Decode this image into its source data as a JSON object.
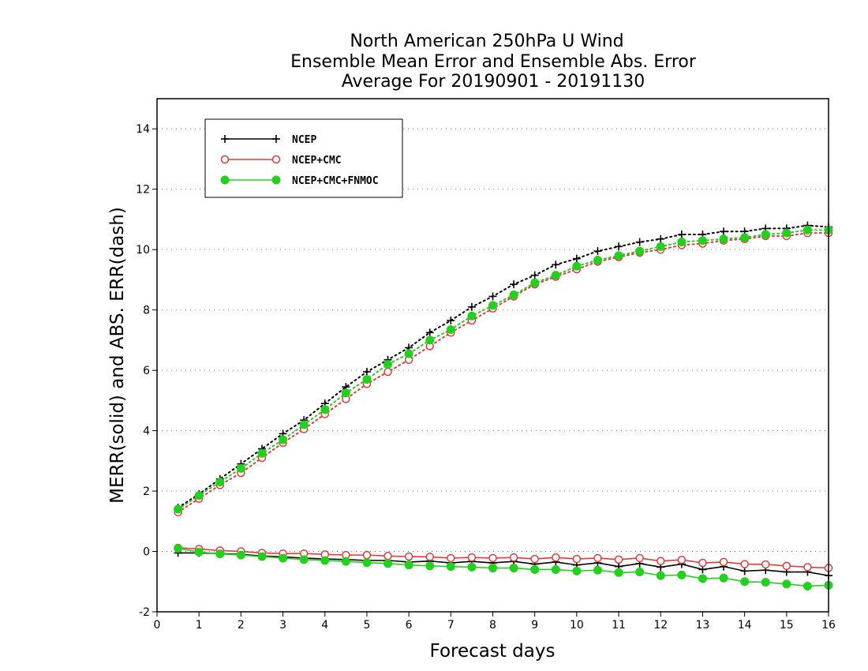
{
  "chart_data": {
    "type": "line",
    "title": [
      "North American 250hPa U Wind",
      "Ensemble Mean Error and Ensemble Abs. Error",
      "Average For 20190901 - 20191130"
    ],
    "xlabel": "Forecast days",
    "ylabel": "MERR(solid) and ABS. ERR(dash)",
    "xlim": [
      0,
      16
    ],
    "ylim": [
      -2,
      15
    ],
    "xticks": [
      "0",
      "1",
      "2",
      "3",
      "4",
      "5",
      "6",
      "7",
      "8",
      "9",
      "10",
      "11",
      "12",
      "13",
      "14",
      "15",
      "16"
    ],
    "yticks": [
      "-2",
      "0",
      "2",
      "4",
      "6",
      "8",
      "10",
      "12",
      "14"
    ],
    "grid": "horizontal dotted",
    "legend_position": "top-left",
    "x": [
      0.5,
      1,
      1.5,
      2,
      2.5,
      3,
      3.5,
      4,
      4.5,
      5,
      5.5,
      6,
      6.5,
      7,
      7.5,
      8,
      8.5,
      9,
      9.5,
      10,
      10.5,
      11,
      11.5,
      12,
      12.5,
      13,
      13.5,
      14,
      14.5,
      15,
      15.5,
      16
    ],
    "series": [
      {
        "name": "NCEP",
        "color": "#000000",
        "marker": "plus",
        "mean_error": [
          -0.05,
          -0.05,
          -0.07,
          -0.1,
          -0.15,
          -0.18,
          -0.22,
          -0.25,
          -0.27,
          -0.3,
          -0.3,
          -0.35,
          -0.32,
          -0.38,
          -0.33,
          -0.38,
          -0.33,
          -0.42,
          -0.35,
          -0.45,
          -0.38,
          -0.5,
          -0.4,
          -0.52,
          -0.42,
          -0.6,
          -0.5,
          -0.65,
          -0.62,
          -0.68,
          -0.68,
          -0.8
        ],
        "abs_error": [
          1.45,
          1.9,
          2.4,
          2.9,
          3.4,
          3.9,
          4.35,
          4.9,
          5.45,
          5.95,
          6.35,
          6.75,
          7.25,
          7.65,
          8.1,
          8.45,
          8.85,
          9.15,
          9.5,
          9.7,
          9.95,
          10.1,
          10.25,
          10.35,
          10.5,
          10.5,
          10.6,
          10.6,
          10.7,
          10.7,
          10.8,
          10.75
        ]
      },
      {
        "name": "NCEP+CMC",
        "color": "#e8393a",
        "marker": "open-circle",
        "mean_error": [
          0.12,
          0.08,
          0.03,
          0.0,
          -0.05,
          -0.07,
          -0.07,
          -0.1,
          -0.12,
          -0.12,
          -0.15,
          -0.17,
          -0.18,
          -0.22,
          -0.2,
          -0.22,
          -0.2,
          -0.25,
          -0.2,
          -0.25,
          -0.22,
          -0.27,
          -0.22,
          -0.32,
          -0.28,
          -0.38,
          -0.35,
          -0.42,
          -0.43,
          -0.48,
          -0.52,
          -0.55
        ],
        "abs_error": [
          1.3,
          1.75,
          2.2,
          2.6,
          3.1,
          3.6,
          4.05,
          4.55,
          5.05,
          5.55,
          5.95,
          6.35,
          6.8,
          7.25,
          7.65,
          8.05,
          8.45,
          8.85,
          9.1,
          9.35,
          9.6,
          9.75,
          9.9,
          10.0,
          10.15,
          10.2,
          10.3,
          10.35,
          10.45,
          10.45,
          10.55,
          10.55
        ]
      },
      {
        "name": "NCEP+CMC+FNMOC",
        "color": "#22d11e",
        "marker": "filled-circle",
        "mean_error": [
          0.1,
          -0.02,
          -0.08,
          -0.12,
          -0.17,
          -0.22,
          -0.27,
          -0.3,
          -0.33,
          -0.37,
          -0.4,
          -0.45,
          -0.48,
          -0.5,
          -0.52,
          -0.55,
          -0.55,
          -0.6,
          -0.6,
          -0.65,
          -0.62,
          -0.7,
          -0.68,
          -0.8,
          -0.78,
          -0.9,
          -0.88,
          -1.0,
          -1.02,
          -1.08,
          -1.15,
          -1.12
        ],
        "abs_error": [
          1.4,
          1.85,
          2.3,
          2.75,
          3.25,
          3.7,
          4.2,
          4.7,
          5.25,
          5.7,
          6.2,
          6.55,
          7.0,
          7.35,
          7.8,
          8.15,
          8.5,
          8.9,
          9.15,
          9.45,
          9.65,
          9.8,
          9.95,
          10.1,
          10.25,
          10.3,
          10.35,
          10.4,
          10.5,
          10.55,
          10.65,
          10.65
        ]
      }
    ]
  }
}
